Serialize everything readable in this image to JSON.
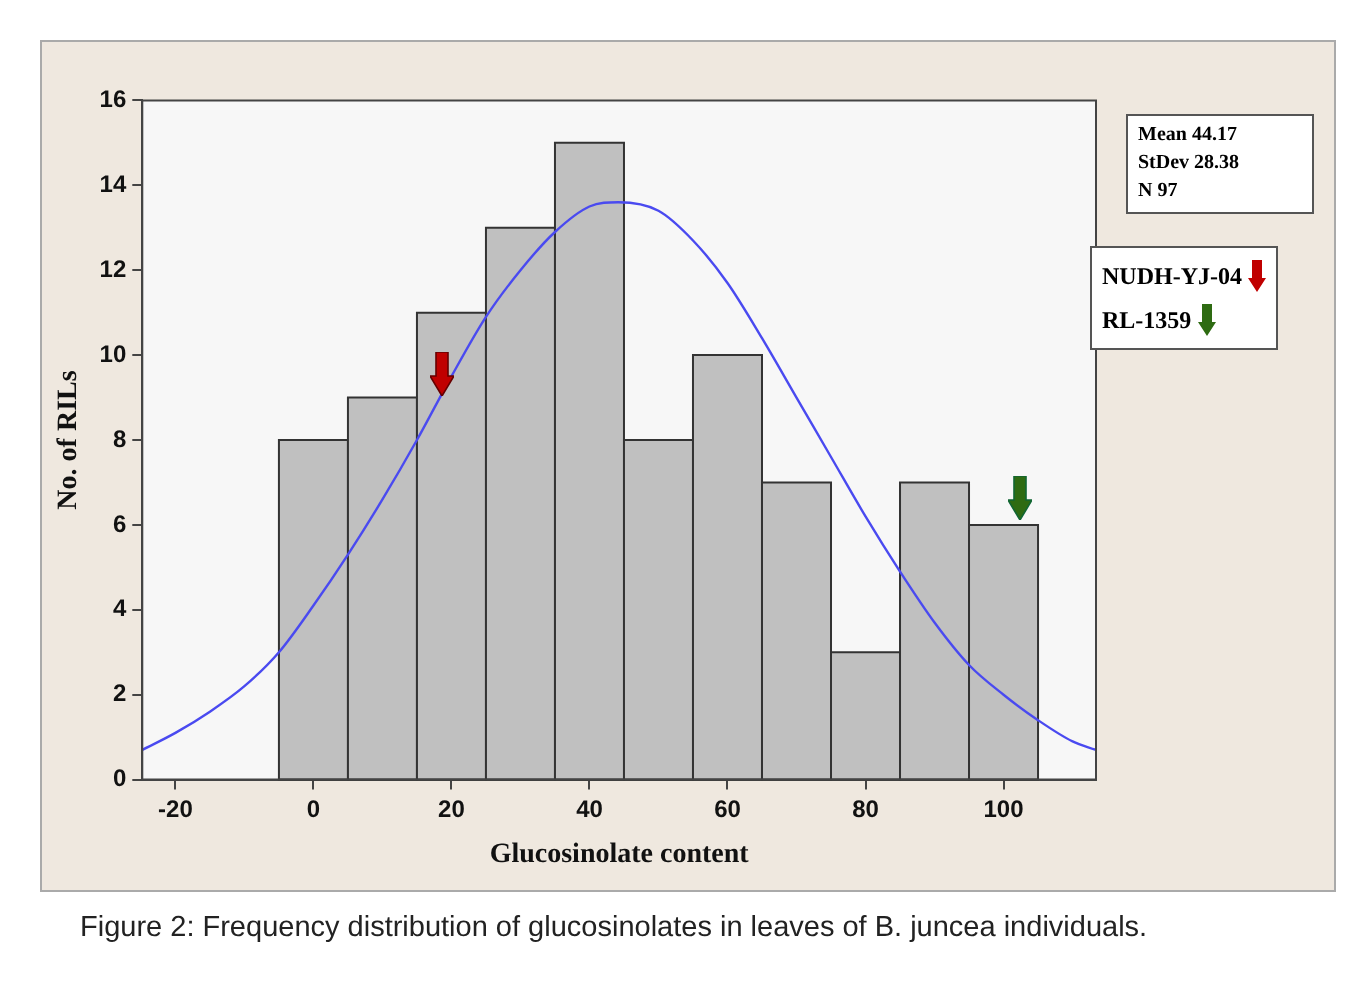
{
  "chart_data": {
    "type": "histogram",
    "xlabel": "Glucosinolate content",
    "ylabel": "No. of RILs",
    "xlim": [
      -24.8,
      113.4
    ],
    "xticks": [
      -20,
      0,
      20,
      40,
      60,
      80,
      100
    ],
    "ylim": [
      0,
      16
    ],
    "yticks": [
      0,
      2,
      4,
      6,
      8,
      10,
      12,
      14,
      16
    ],
    "grid": false,
    "legend": false,
    "series": [
      {
        "type": "histogram",
        "color": "#c0c0c0",
        "bins": [
          -5,
          5,
          15,
          25,
          35,
          45,
          55,
          65,
          75,
          85,
          95,
          105
        ],
        "values": [
          8,
          9,
          11,
          13,
          15,
          8,
          10,
          7,
          3,
          7,
          6
        ]
      },
      {
        "type": "line",
        "color": "#4a4af0",
        "x": [
          -24.8,
          -20,
          -15,
          -10,
          -5,
          0,
          5,
          10,
          15,
          20,
          25,
          30,
          35,
          40,
          44.17,
          50,
          55,
          60,
          65,
          70,
          75,
          80,
          85,
          90,
          95,
          100,
          105,
          110,
          113.4
        ],
        "values": [
          0.7,
          1.1,
          1.6,
          2.2,
          3.0,
          4.1,
          5.3,
          6.6,
          8.0,
          9.5,
          10.9,
          12.0,
          12.9,
          13.5,
          13.6,
          13.4,
          12.7,
          11.7,
          10.4,
          9.0,
          7.6,
          6.2,
          4.9,
          3.7,
          2.7,
          2.0,
          1.4,
          0.9,
          0.7
        ]
      }
    ],
    "annotations": [
      "Mean 44.17",
      "StDev 28.38",
      "N 97",
      "NUDH-YJ-04",
      "RL-1359",
      "Figure 2: Frequency distribution of glucosinolates in leaves of B. juncea individuals."
    ]
  }
}
